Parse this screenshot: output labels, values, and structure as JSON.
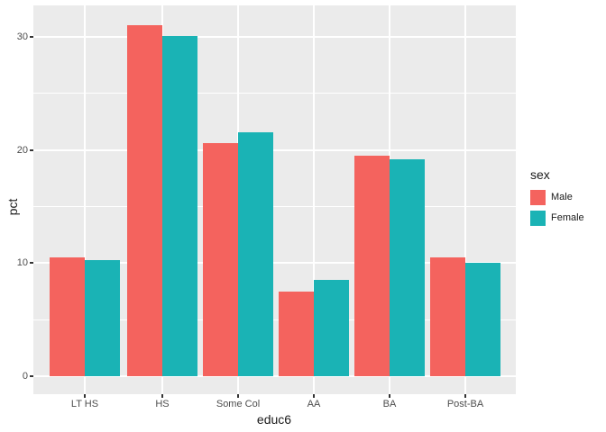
{
  "chart_data": {
    "type": "bar",
    "subtype": "grouped-dodged",
    "title": "",
    "xlabel": "educ6",
    "ylabel": "pct",
    "categories": [
      "LT HS",
      "HS",
      "Some Col",
      "AA",
      "BA",
      "Post-BA"
    ],
    "series": [
      {
        "name": "Male",
        "color": "#F4635E",
        "values": [
          10.5,
          31.0,
          20.6,
          7.5,
          19.5,
          10.5
        ]
      },
      {
        "name": "Female",
        "color": "#1AB3B5",
        "values": [
          10.3,
          30.1,
          21.6,
          8.5,
          19.2,
          10.0
        ]
      }
    ],
    "ylim": [
      -1.55,
      32.55
    ],
    "yticks": [
      0,
      10,
      20,
      30
    ],
    "yticks_minor": [
      5,
      15,
      25
    ],
    "y_tick_labels": [
      "0",
      "10",
      "20",
      "30"
    ],
    "grid": "on",
    "legend_position": "right",
    "panel_bg": "#EBEBEB",
    "grid_color": "#FFFFFF",
    "tick_text_color": "#4D4D4D"
  },
  "axes": {
    "x_title": "educ6",
    "y_title": "pct"
  },
  "legend": {
    "title": "sex",
    "items": [
      {
        "label": "Male",
        "color": "#F4635E"
      },
      {
        "label": "Female",
        "color": "#1AB3B5"
      }
    ]
  }
}
